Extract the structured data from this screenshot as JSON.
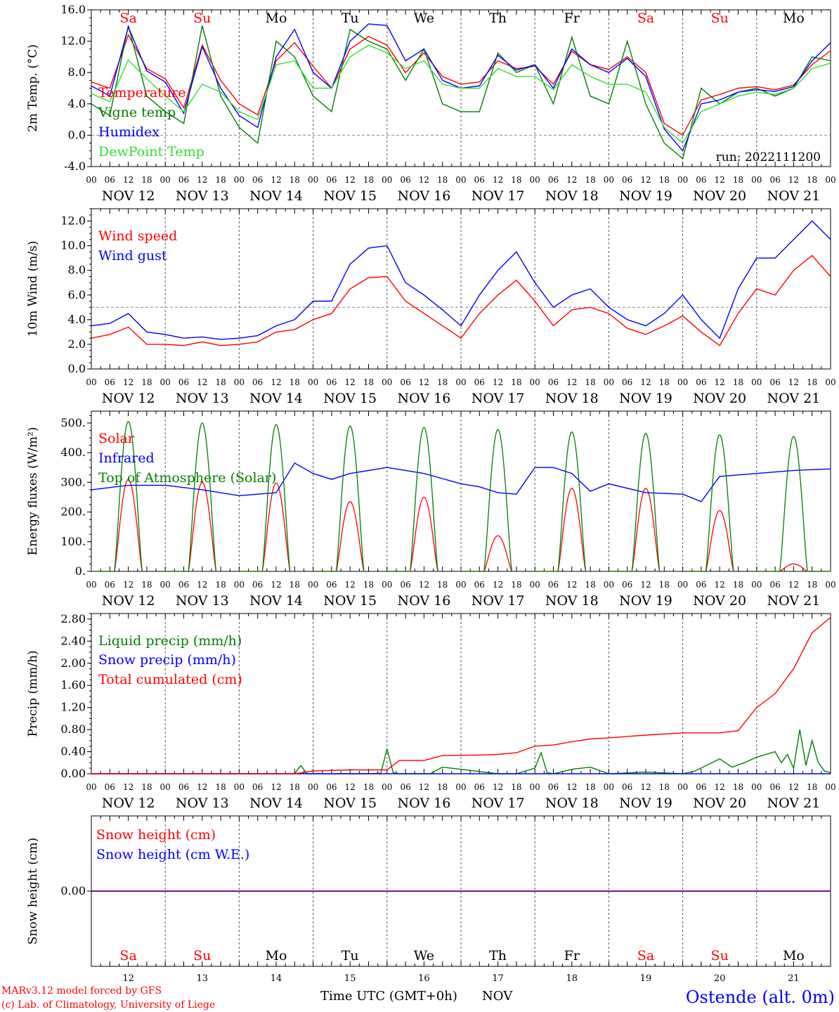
{
  "colors": {
    "red": "#ff0000",
    "green": "#007f00",
    "blue": "#0000ff",
    "lightgreen": "#33dd33",
    "purple": "#7f007f",
    "grey": "#888888"
  },
  "days": [
    "NOV 12",
    "NOV 13",
    "NOV 14",
    "NOV 15",
    "NOV 16",
    "NOV 17",
    "NOV 18",
    "NOV 19",
    "NOV 20",
    "NOV 21"
  ],
  "weekdays": [
    "Sa",
    "Su",
    "Mo",
    "Tu",
    "We",
    "Th",
    "Fr",
    "Sa",
    "Su",
    "Mo"
  ],
  "weekend_flags": [
    true,
    true,
    false,
    false,
    false,
    false,
    false,
    true,
    true,
    false
  ],
  "day_numbers": [
    "12",
    "13",
    "14",
    "15",
    "16",
    "17",
    "18",
    "19",
    "20",
    "21"
  ],
  "hour_labels": [
    "00",
    "06",
    "12",
    "18"
  ],
  "run_label": "run: 2022111200",
  "footer": {
    "model": "MARv3.12 model forced by GFS",
    "lab": "(c) Lab. of Climatology, University of Liege",
    "time_axis": "Time UTC (GMT+0h)",
    "month": "NOV",
    "station": "Ostende (alt. 0m)"
  },
  "chart_data": [
    {
      "type": "line",
      "ylabel": "2m Temp. (°C)",
      "ylim": [
        -4,
        16
      ],
      "yticks": [
        "-4.0",
        "0.0",
        "4.0",
        "8.0",
        "12.0",
        "16.0"
      ],
      "yticks_values": [
        -4,
        0,
        4,
        8,
        12,
        16
      ],
      "reference_line": 0,
      "x_unit": "hours since 00 UTC NOV 12",
      "series": [
        {
          "name": "Temperature",
          "color": "#ff0000",
          "x": [
            0,
            6,
            12,
            18,
            24,
            30,
            36,
            42,
            48,
            54,
            60,
            66,
            72,
            78,
            84,
            90,
            96,
            102,
            108,
            114,
            120,
            126,
            132,
            138,
            144,
            150,
            156,
            162,
            168,
            174,
            180,
            186,
            192,
            198,
            204,
            210,
            216,
            222,
            228,
            234,
            240
          ],
          "values": [
            6.8,
            6.0,
            12.8,
            8.5,
            7.2,
            3.5,
            11.5,
            7.0,
            4.0,
            2.6,
            9.5,
            11.8,
            8.8,
            6.0,
            11.0,
            12.6,
            11.5,
            8.0,
            10.5,
            7.5,
            6.5,
            6.8,
            9.5,
            8.5,
            8.8,
            6.5,
            10.7,
            9.0,
            8.4,
            10.0,
            8.0,
            1.5,
            0.0,
            4.5,
            5.2,
            6.0,
            6.2,
            5.8,
            6.4,
            9.0,
            10.8
          ]
        },
        {
          "name": "Vigne temp",
          "color": "#007f00",
          "x": [
            0,
            6,
            12,
            18,
            24,
            30,
            36,
            42,
            48,
            54,
            60,
            66,
            72,
            78,
            84,
            90,
            96,
            102,
            108,
            114,
            120,
            126,
            132,
            138,
            144,
            150,
            156,
            162,
            168,
            174,
            180,
            186,
            192,
            198,
            204,
            210,
            216,
            222,
            228,
            234,
            240
          ],
          "values": [
            4.0,
            2.5,
            14.0,
            5.0,
            3.0,
            1.5,
            14.0,
            5.0,
            1.0,
            -1.0,
            12.0,
            10.0,
            5.0,
            3.0,
            13.5,
            12.0,
            11.0,
            7.0,
            11.0,
            4.0,
            3.0,
            3.0,
            10.5,
            8.0,
            9.0,
            4.0,
            12.5,
            5.0,
            4.0,
            12.0,
            4.0,
            -1.0,
            -3.0,
            6.0,
            4.0,
            5.5,
            6.0,
            5.0,
            6.0,
            10.0,
            9.5
          ]
        },
        {
          "name": "Humidex",
          "color": "#0000ff",
          "x": [
            0,
            6,
            12,
            18,
            24,
            30,
            36,
            42,
            48,
            54,
            60,
            66,
            72,
            78,
            84,
            90,
            96,
            102,
            108,
            114,
            120,
            126,
            132,
            138,
            144,
            150,
            156,
            162,
            168,
            174,
            180,
            186,
            192,
            198,
            204,
            210,
            216,
            222,
            228,
            234,
            240
          ],
          "values": [
            6.3,
            5.0,
            13.8,
            8.2,
            6.8,
            2.8,
            11.3,
            6.0,
            2.5,
            1.0,
            10.0,
            13.5,
            8.0,
            6.0,
            12.0,
            14.2,
            14.0,
            9.5,
            11.0,
            7.0,
            6.0,
            6.3,
            10.2,
            8.3,
            9.0,
            6.0,
            11.0,
            9.0,
            8.0,
            9.8,
            7.5,
            0.8,
            -2.0,
            4.0,
            4.5,
            5.5,
            5.8,
            5.6,
            6.2,
            9.5,
            11.8
          ]
        },
        {
          "name": "DewPoint Temp",
          "color": "#33dd33",
          "x": [
            0,
            6,
            12,
            18,
            24,
            30,
            36,
            42,
            48,
            54,
            60,
            66,
            72,
            78,
            84,
            90,
            96,
            102,
            108,
            114,
            120,
            126,
            132,
            138,
            144,
            150,
            156,
            162,
            168,
            174,
            180,
            186,
            192,
            198,
            204,
            210,
            216,
            222,
            228,
            234,
            240
          ],
          "values": [
            5.3,
            4.3,
            9.6,
            7.2,
            5.0,
            3.0,
            6.5,
            5.5,
            3.0,
            2.0,
            9.0,
            9.5,
            6.0,
            6.0,
            10.0,
            11.5,
            10.5,
            8.5,
            9.5,
            6.5,
            6.0,
            6.0,
            8.5,
            7.5,
            7.5,
            5.8,
            9.0,
            7.5,
            6.5,
            6.5,
            5.5,
            1.0,
            -1.0,
            3.0,
            4.0,
            5.0,
            5.5,
            5.2,
            6.0,
            8.5,
            9.2
          ]
        }
      ]
    },
    {
      "type": "line",
      "ylabel": "10m Wind (m/s)",
      "ylim": [
        0,
        13
      ],
      "yticks": [
        "0.0",
        "2.0",
        "4.0",
        "6.0",
        "8.0",
        "10.0",
        "12.0"
      ],
      "yticks_values": [
        0,
        2,
        4,
        6,
        8,
        10,
        12
      ],
      "reference_line": 5,
      "x_unit": "hours since 00 UTC NOV 12",
      "series": [
        {
          "name": "Wind speed",
          "color": "#ff0000",
          "x": [
            0,
            6,
            12,
            18,
            24,
            30,
            36,
            42,
            48,
            54,
            60,
            66,
            72,
            78,
            84,
            90,
            96,
            102,
            108,
            114,
            120,
            126,
            132,
            138,
            144,
            150,
            156,
            162,
            168,
            174,
            180,
            186,
            192,
            198,
            204,
            210,
            216,
            222,
            228,
            234,
            240
          ],
          "values": [
            2.5,
            2.8,
            3.4,
            2.0,
            2.0,
            1.9,
            2.2,
            1.9,
            2.0,
            2.2,
            3.0,
            3.2,
            4.0,
            4.5,
            6.5,
            7.4,
            7.5,
            5.5,
            4.5,
            3.5,
            2.5,
            4.5,
            6.0,
            7.2,
            5.5,
            3.5,
            4.8,
            5.0,
            4.5,
            3.3,
            2.8,
            3.5,
            4.3,
            3.0,
            1.9,
            4.5,
            6.5,
            6.0,
            8.0,
            9.2,
            7.5
          ]
        },
        {
          "name": "Wind gust",
          "color": "#0000ff",
          "x": [
            0,
            6,
            12,
            18,
            24,
            30,
            36,
            42,
            48,
            54,
            60,
            66,
            72,
            78,
            84,
            90,
            96,
            102,
            108,
            114,
            120,
            126,
            132,
            138,
            144,
            150,
            156,
            162,
            168,
            174,
            180,
            186,
            192,
            198,
            204,
            210,
            216,
            222,
            228,
            234,
            240
          ],
          "values": [
            3.5,
            3.7,
            4.5,
            3.0,
            2.8,
            2.5,
            2.6,
            2.4,
            2.5,
            2.7,
            3.5,
            4.0,
            5.5,
            5.5,
            8.5,
            9.8,
            10.0,
            7.0,
            6.0,
            4.8,
            3.5,
            6.0,
            8.0,
            9.5,
            7.0,
            5.0,
            6.0,
            6.5,
            5.0,
            4.0,
            3.5,
            4.5,
            6.0,
            4.0,
            2.5,
            6.5,
            9.0,
            9.0,
            10.5,
            12.0,
            10.5
          ]
        }
      ]
    },
    {
      "type": "line",
      "ylabel": "Energy fluxes (W/m²)",
      "ylim": [
        0,
        540
      ],
      "yticks": [
        "0.",
        "100.",
        "200.",
        "300.",
        "400.",
        "500."
      ],
      "yticks_values": [
        0,
        100,
        200,
        300,
        400,
        500
      ],
      "x_unit": "hours since 00 UTC NOV 12",
      "daylight_hours": [
        7.5,
        16.5
      ],
      "series": [
        {
          "name": "Solar",
          "color": "#ff0000",
          "peaks": [
            310,
            300,
            298,
            235,
            250,
            120,
            280,
            280,
            205,
            25
          ]
        },
        {
          "name": "Infrared",
          "color": "#0000ff",
          "x": [
            0,
            12,
            24,
            36,
            48,
            60,
            66,
            72,
            78,
            84,
            96,
            108,
            120,
            126,
            132,
            138,
            144,
            150,
            156,
            162,
            168,
            180,
            192,
            198,
            204,
            216,
            228,
            240
          ],
          "values": [
            275,
            290,
            290,
            275,
            255,
            265,
            365,
            330,
            310,
            330,
            350,
            330,
            295,
            285,
            265,
            260,
            350,
            350,
            330,
            270,
            295,
            265,
            260,
            235,
            320,
            330,
            340,
            345
          ]
        },
        {
          "name": "Top of Atmosphere (Solar)",
          "color": "#007f00",
          "peaks": [
            505,
            500,
            495,
            490,
            485,
            478,
            470,
            465,
            460,
            455
          ]
        }
      ]
    },
    {
      "type": "line",
      "ylabel": "Precip (mm/h)",
      "ylim": [
        0,
        2.9
      ],
      "yticks": [
        "0.00",
        "0.40",
        "0.80",
        "1.20",
        "1.60",
        "2.00",
        "2.40",
        "2.80"
      ],
      "yticks_values": [
        0,
        0.4,
        0.8,
        1.2,
        1.6,
        2.0,
        2.4,
        2.8
      ],
      "x_unit": "hours since 00 UTC NOV 12",
      "series": [
        {
          "name": "Liquid precip (mm/h)",
          "color": "#007f00",
          "x": [
            0,
            60,
            66,
            68,
            70,
            72,
            84,
            90,
            94,
            96,
            98,
            100,
            108,
            110,
            114,
            132,
            138,
            144,
            146,
            148,
            150,
            156,
            162,
            168,
            180,
            192,
            196,
            204,
            208,
            212,
            216,
            222,
            224,
            226,
            228,
            230,
            232,
            234,
            236,
            238,
            240
          ],
          "values": [
            0,
            0,
            0,
            0.15,
            0,
            0,
            0,
            0,
            0.01,
            0.45,
            0.02,
            0,
            0,
            0,
            0.12,
            0,
            0,
            0.1,
            0.38,
            0.02,
            0,
            0.08,
            0.12,
            0,
            0.03,
            0,
            0.05,
            0.27,
            0.12,
            0.2,
            0.3,
            0.4,
            0.2,
            0.35,
            0.1,
            0.8,
            0.15,
            0.6,
            0.2,
            0.05,
            0.02
          ]
        },
        {
          "name": "Snow precip (mm/h)",
          "color": "#0000ff",
          "x": [
            0,
            240
          ],
          "values": [
            0,
            0
          ]
        },
        {
          "name": "Total cumulated (cm)",
          "color": "#ff0000",
          "x": [
            0,
            66,
            72,
            84,
            90,
            96,
            100,
            108,
            114,
            126,
            132,
            138,
            144,
            150,
            156,
            162,
            168,
            180,
            192,
            204,
            210,
            216,
            222,
            228,
            234,
            240
          ],
          "values": [
            0,
            0,
            0.05,
            0.07,
            0.07,
            0.07,
            0.24,
            0.24,
            0.33,
            0.34,
            0.35,
            0.38,
            0.5,
            0.52,
            0.58,
            0.63,
            0.65,
            0.7,
            0.74,
            0.74,
            0.78,
            1.2,
            1.45,
            1.9,
            2.55,
            2.83
          ]
        }
      ]
    },
    {
      "type": "line",
      "ylabel": "Snow height (cm)",
      "yticks": [
        "0.00"
      ],
      "yticks_values": [
        0
      ],
      "ylim": [
        -1,
        1
      ],
      "series": [
        {
          "name": "Snow height (cm)",
          "color": "#ff0000",
          "x": [
            0,
            240
          ],
          "values": [
            0,
            0
          ]
        },
        {
          "name": "Snow height (cm W.E.)",
          "color": "#0000ff",
          "x": [
            0,
            240
          ],
          "values": [
            0,
            0
          ]
        }
      ]
    }
  ]
}
